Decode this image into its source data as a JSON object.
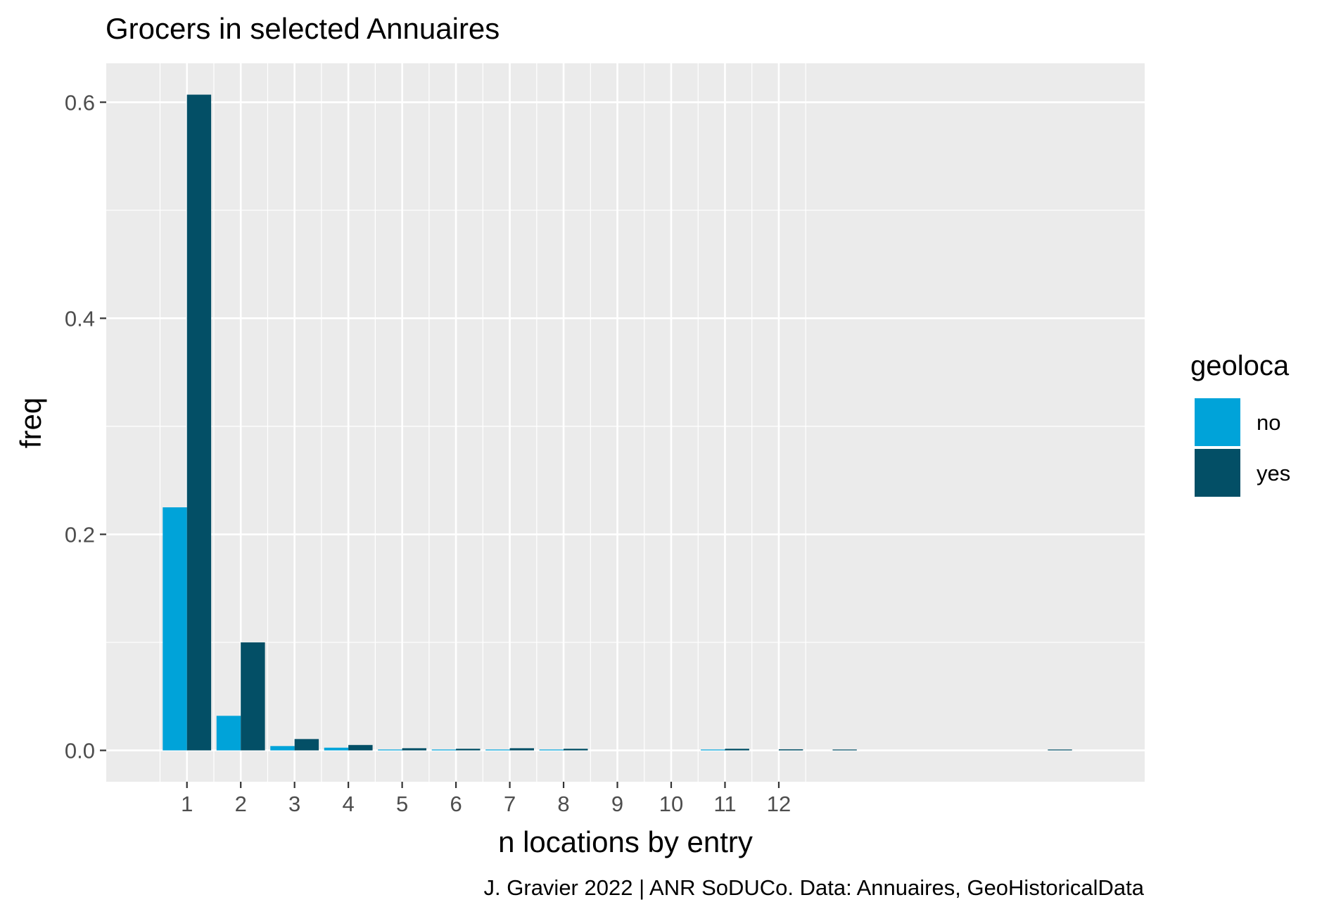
{
  "chart_data": {
    "type": "bar",
    "title": "Grocers in selected Annuaires",
    "xlabel": "n locations by entry",
    "ylabel": "freq",
    "caption": "J. Gravier 2022 | ANR SoDUCo. Data: Annuaires, GeoHistoricalData",
    "x_tick_labels": [
      "1",
      "2",
      "3",
      "4",
      "5",
      "6",
      "7",
      "8",
      "9",
      "10",
      "11",
      "12"
    ],
    "y_tick_labels": [
      "0.0",
      "0.2",
      "0.4",
      "0.6"
    ],
    "y_ticks": [
      0,
      0.2,
      0.4,
      0.6
    ],
    "xlim": [
      -0.5,
      18.8
    ],
    "ylim": [
      -0.029,
      0.636
    ],
    "legend": {
      "title": "geoloca",
      "position": "right"
    },
    "grid": true,
    "series": [
      {
        "name": "no",
        "color": "#00a3d9",
        "points": [
          {
            "x": 1,
            "y": 0.225
          },
          {
            "x": 2,
            "y": 0.032
          },
          {
            "x": 3,
            "y": 0.004
          },
          {
            "x": 4,
            "y": 0.0025
          },
          {
            "x": 5,
            "y": 0.0008
          },
          {
            "x": 6,
            "y": 0.0008
          },
          {
            "x": 7,
            "y": 0.0008
          },
          {
            "x": 8,
            "y": 0.0008
          },
          {
            "x": 11,
            "y": 0.0008
          }
        ]
      },
      {
        "name": "yes",
        "color": "#034f66",
        "points": [
          {
            "x": 1,
            "y": 0.607
          },
          {
            "x": 2,
            "y": 0.1
          },
          {
            "x": 3,
            "y": 0.0105
          },
          {
            "x": 4,
            "y": 0.005
          },
          {
            "x": 5,
            "y": 0.002
          },
          {
            "x": 6,
            "y": 0.0015
          },
          {
            "x": 7,
            "y": 0.002
          },
          {
            "x": 8,
            "y": 0.0015
          },
          {
            "x": 11,
            "y": 0.0015
          },
          {
            "x": 12,
            "y": 0.001
          },
          {
            "x": 13,
            "y": 0.0008
          },
          {
            "x": 17,
            "y": 0.0008
          }
        ]
      }
    ]
  }
}
